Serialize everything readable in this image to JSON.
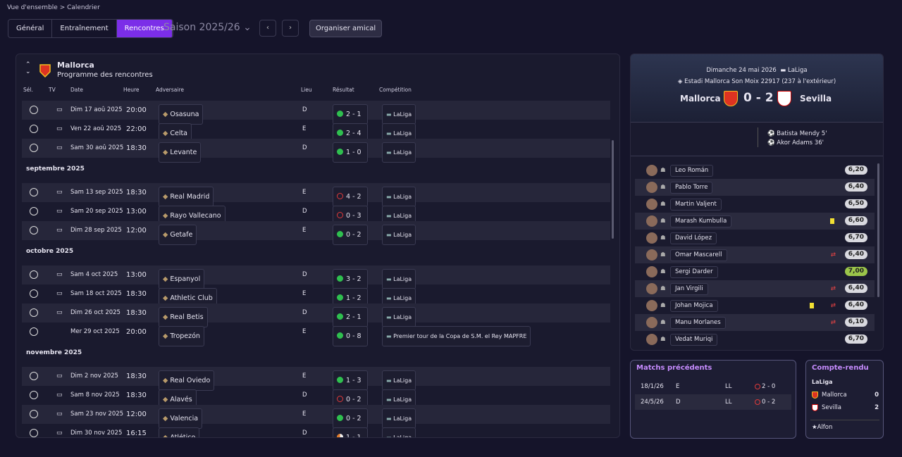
{
  "breadcrumb": [
    "Vue d'ensemble",
    "Calendrier"
  ],
  "tabs": [
    "Général",
    "Entraînement",
    "Rencontres"
  ],
  "active_tab": 2,
  "season": "Saison 2025/26",
  "friendly_button": "Organiser amical",
  "fixtures": {
    "club": "Mallorca",
    "subtitle": "Programme des rencontres",
    "columns": [
      "Sél.",
      "TV",
      "Date",
      "Heure",
      "Adversaire",
      "Lieu",
      "Résultat",
      "Compétition"
    ],
    "sections": [
      {
        "rows": [
          {
            "date": "Dim 17 aoû 2025",
            "time": "20:00",
            "opponent": "Osasuna",
            "venue": "D",
            "result": "2 - 1",
            "outcome": "win",
            "tv": true,
            "competition": "LaLiga"
          },
          {
            "date": "Ven 22 aoû 2025",
            "time": "22:00",
            "opponent": "Celta",
            "venue": "E",
            "result": "2 - 4",
            "outcome": "win",
            "tv": true,
            "competition": "LaLiga"
          },
          {
            "date": "Sam 30 aoû 2025",
            "time": "18:30",
            "opponent": "Levante",
            "venue": "D",
            "result": "1 - 0",
            "outcome": "win",
            "tv": true,
            "competition": "LaLiga"
          }
        ]
      },
      {
        "month": "septembre 2025",
        "rows": [
          {
            "date": "Sam 13 sep 2025",
            "time": "18:30",
            "opponent": "Real Madrid",
            "venue": "E",
            "result": "4 - 2",
            "outcome": "loss",
            "tv": true,
            "competition": "LaLiga"
          },
          {
            "date": "Sam 20 sep 2025",
            "time": "13:00",
            "opponent": "Rayo Vallecano",
            "venue": "D",
            "result": "0 - 3",
            "outcome": "loss",
            "tv": true,
            "competition": "LaLiga"
          },
          {
            "date": "Dim 28 sep 2025",
            "time": "12:00",
            "opponent": "Getafe",
            "venue": "E",
            "result": "0 - 2",
            "outcome": "win",
            "tv": true,
            "competition": "LaLiga"
          }
        ]
      },
      {
        "month": "octobre 2025",
        "rows": [
          {
            "date": "Sam 4 oct 2025",
            "time": "13:00",
            "opponent": "Espanyol",
            "venue": "D",
            "result": "3 - 2",
            "outcome": "win",
            "tv": true,
            "competition": "LaLiga"
          },
          {
            "date": "Sam 18 oct 2025",
            "time": "18:30",
            "opponent": "Athletic Club",
            "venue": "E",
            "result": "1 - 2",
            "outcome": "win",
            "tv": true,
            "competition": "LaLiga"
          },
          {
            "date": "Dim 26 oct 2025",
            "time": "18:30",
            "opponent": "Real Betis",
            "venue": "D",
            "result": "2 - 1",
            "outcome": "win",
            "tv": true,
            "competition": "LaLiga"
          },
          {
            "date": "Mer 29 oct 2025",
            "time": "20:00",
            "opponent": "Tropezón",
            "venue": "E",
            "result": "0 - 8",
            "outcome": "win",
            "tv": false,
            "competition": "Premier tour de la Copa de S.M. el Rey MAPFRE"
          }
        ]
      },
      {
        "month": "novembre 2025",
        "rows": [
          {
            "date": "Dim 2 nov 2025",
            "time": "18:30",
            "opponent": "Real Oviedo",
            "venue": "E",
            "result": "1 - 3",
            "outcome": "win",
            "tv": true,
            "competition": "LaLiga"
          },
          {
            "date": "Sam 8 nov 2025",
            "time": "18:30",
            "opponent": "Alavés",
            "venue": "D",
            "result": "0 - 2",
            "outcome": "loss",
            "tv": true,
            "competition": "LaLiga"
          },
          {
            "date": "Sam 23 nov 2025",
            "time": "12:00",
            "opponent": "Valencia",
            "venue": "E",
            "result": "0 - 2",
            "outcome": "win",
            "tv": true,
            "competition": "LaLiga"
          },
          {
            "date": "Dim 30 nov 2025",
            "time": "16:15",
            "opponent": "Atlético",
            "venue": "D",
            "result": "1 - 1",
            "outcome": "draw",
            "tv": true,
            "competition": "LaLiga"
          }
        ]
      }
    ]
  },
  "match": {
    "date": "Dimanche 24 mai 2026",
    "competition": "LaLiga",
    "stadium": "Estadi Mallorca Son Moix",
    "attendance": "22917",
    "away_fans": "(237 à l'extérieur)",
    "home": "Mallorca",
    "score": "0 - 2",
    "away": "Sevilla",
    "scorers": [
      "Batista Mendy 5'",
      "Akor Adams 36'"
    ],
    "players": [
      {
        "name": "Leo Román",
        "rating": "6,20"
      },
      {
        "name": "Pablo Torre",
        "rating": "6,40"
      },
      {
        "name": "Martin Valjent",
        "rating": "6,50"
      },
      {
        "name": "Marash Kumbulla",
        "rating": "6,60",
        "yellow": true
      },
      {
        "name": "David López",
        "rating": "6,70"
      },
      {
        "name": "Omar Mascarell",
        "rating": "6,40",
        "sub": true
      },
      {
        "name": "Sergi Darder",
        "rating": "7,00",
        "best": true
      },
      {
        "name": "Jan Virgili",
        "rating": "6,40",
        "sub": true
      },
      {
        "name": "Johan Mojica",
        "rating": "6,40",
        "yellow": true,
        "sub": true
      },
      {
        "name": "Manu Morlanes",
        "rating": "6,10",
        "sub": true
      },
      {
        "name": "Vedat Muriqi",
        "rating": "6,70"
      }
    ]
  },
  "previous": {
    "title": "Matchs précédents",
    "rows": [
      {
        "date": "18/1/26",
        "venue": "E",
        "competition": "LL",
        "score": "2 - 0"
      },
      {
        "date": "24/5/26",
        "venue": "D",
        "competition": "LL",
        "score": "0 - 2"
      }
    ]
  },
  "report": {
    "title": "Compte-rendu",
    "competition": "LaLiga",
    "teams": [
      {
        "name": "Mallorca",
        "goals": 0
      },
      {
        "name": "Sevilla",
        "goals": 2
      }
    ],
    "player": "Alfon"
  }
}
